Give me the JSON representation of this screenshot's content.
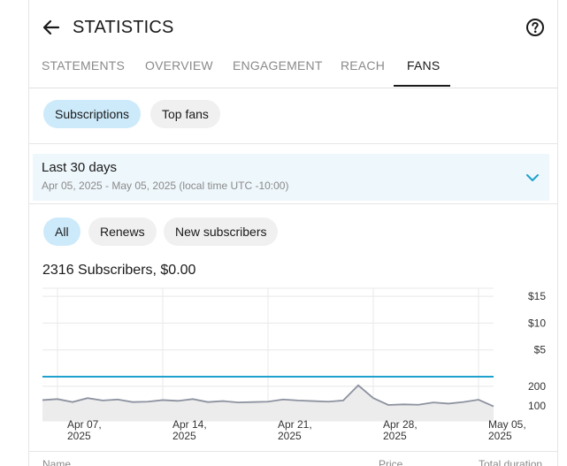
{
  "header": {
    "title": "STATISTICS",
    "back_icon": "arrow-left-icon",
    "help_icon": "question-circle-icon"
  },
  "tabs": [
    {
      "label": "STATEMENTS",
      "active": false
    },
    {
      "label": "OVERVIEW",
      "active": false
    },
    {
      "label": "ENGAGEMENT",
      "active": false
    },
    {
      "label": "REACH",
      "active": false
    },
    {
      "label": "FANS",
      "active": true
    }
  ],
  "fan_filters": [
    {
      "label": "Subscriptions",
      "selected": true
    },
    {
      "label": "Top fans",
      "selected": false
    }
  ],
  "date_range": {
    "title": "Last 30 days",
    "subtitle": "Apr 05, 2025 - May 05, 2025 (local time UTC -10:00)",
    "chevron_icon": "chevron-down-icon"
  },
  "subscriber_filters": [
    {
      "label": "All",
      "selected": true
    },
    {
      "label": "Renews",
      "selected": false
    },
    {
      "label": "New subscribers",
      "selected": false
    }
  ],
  "summary": "2316 Subscribers, $0.00",
  "chart_data": {
    "type": "line",
    "x_tick_labels": [
      [
        "Apr 07,",
        "2025"
      ],
      [
        "Apr 14,",
        "2025"
      ],
      [
        "Apr 21,",
        "2025"
      ],
      [
        "Apr 28,",
        "2025"
      ],
      [
        "May 05,",
        "2025"
      ]
    ],
    "earnings_axis": {
      "ticks": [
        "$15",
        "$10",
        "$5"
      ],
      "values": [
        15,
        10,
        5
      ],
      "ylim": [
        0,
        16.5
      ]
    },
    "subscribers_axis": {
      "ticks": [
        "200",
        "100"
      ],
      "values": [
        200,
        100
      ],
      "ylim": [
        60,
        240
      ]
    },
    "series": [
      {
        "axis": "earnings",
        "color": "#1ea1cc",
        "x": [
          "Apr 05",
          "May 05"
        ],
        "values": [
          0,
          0
        ]
      },
      {
        "axis": "subscribers",
        "color": "#8c92a0",
        "x": [
          "Apr 05",
          "Apr 06",
          "Apr 07",
          "Apr 08",
          "Apr 09",
          "Apr 10",
          "Apr 11",
          "Apr 12",
          "Apr 13",
          "Apr 14",
          "Apr 15",
          "Apr 16",
          "Apr 17",
          "Apr 18",
          "Apr 19",
          "Apr 20",
          "Apr 21",
          "Apr 22",
          "Apr 23",
          "Apr 24",
          "Apr 25",
          "Apr 26",
          "Apr 27",
          "Apr 28",
          "Apr 29",
          "Apr 30",
          "May 01",
          "May 02",
          "May 03",
          "May 04",
          "May 05"
        ],
        "values": [
          130,
          135,
          120,
          140,
          128,
          133,
          120,
          122,
          130,
          126,
          135,
          120,
          125,
          118,
          120,
          122,
          133,
          128,
          125,
          122,
          128,
          205,
          140,
          105,
          108,
          106,
          118,
          112,
          120,
          132,
          98
        ]
      }
    ],
    "colors": {
      "grid": "#e8e8e8",
      "earnings_line": "#1ea1cc",
      "subscribers_line": "#8c92a0",
      "subscribers_fill": "#ececec"
    }
  },
  "table_headers": [
    "Name",
    "Price",
    "Total duration"
  ],
  "colors": {
    "chip_selected": "#cdeafb",
    "chip_default": "#f0f0f0",
    "range_bg": "#eef7fc",
    "accent": "#1ea1cc"
  }
}
